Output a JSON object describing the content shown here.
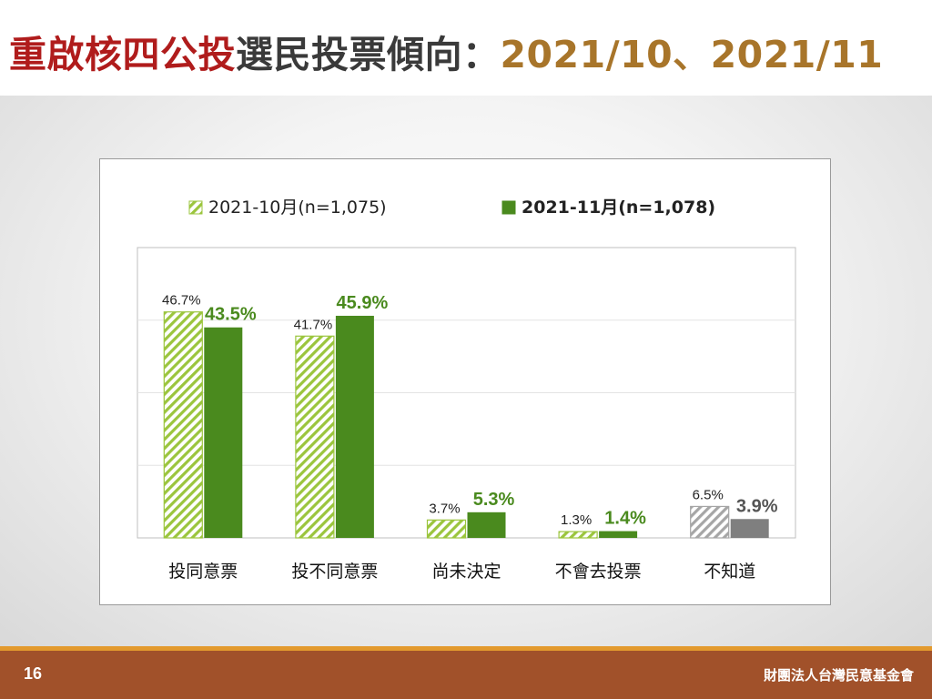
{
  "slide": {
    "title_part1": "重啟核四公投",
    "title_part2": "選民投票傾向：",
    "title_part3": "2021/10、2021/11",
    "page_number": "16",
    "organization": "財團法人台灣民意基金會"
  },
  "colors": {
    "title_red": "#b01c1c",
    "title_dark": "#3a3a3a",
    "title_gold": "#a8752a",
    "series_oct": "#9bc53d",
    "series_nov": "#4a8a1e",
    "unknown_oct": "#a6a6a6",
    "unknown_nov": "#7f7f7f",
    "footer": "#a1512a",
    "footer_stripe": "#e39a2e"
  },
  "chart_data": {
    "type": "bar",
    "categories": [
      "投同意票",
      "投不同意票",
      "尚未決定",
      "不會去投票",
      "不知道"
    ],
    "series": [
      {
        "name": "2021-10月(n=1,075)",
        "values": [
          46.7,
          41.7,
          3.7,
          1.3,
          6.5
        ],
        "labels": [
          "46.7%",
          "41.7%",
          "3.7%",
          "1.3%",
          "6.5%"
        ],
        "style": "hatched"
      },
      {
        "name": "2021-11月(n=1,078)",
        "values": [
          43.5,
          45.9,
          5.3,
          1.4,
          3.9
        ],
        "labels": [
          "43.5%",
          "45.9%",
          "5.3%",
          "1.4%",
          "3.9%"
        ],
        "style": "solid"
      }
    ],
    "ylim": [
      0,
      60
    ],
    "grid": true,
    "legend": "top",
    "title": "",
    "xlabel": "",
    "ylabel": ""
  }
}
